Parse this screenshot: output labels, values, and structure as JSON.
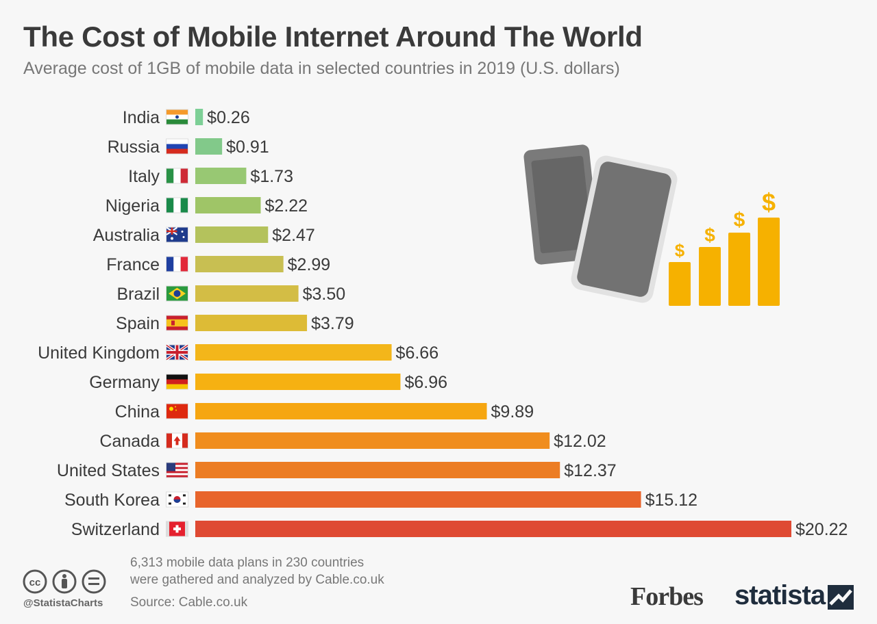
{
  "header": {
    "title": "The Cost of Mobile Internet Around The World",
    "subtitle": "Average cost of 1GB of mobile data in selected countries in 2019 (U.S. dollars)"
  },
  "chart_data": {
    "type": "bar",
    "orientation": "horizontal",
    "title": "The Cost of Mobile Internet Around The World",
    "subtitle": "Average cost of 1GB of mobile data in selected countries in 2019 (U.S. dollars)",
    "xlabel": "",
    "ylabel": "",
    "xlim": [
      0,
      20.22
    ],
    "grid": false,
    "categories": [
      "India",
      "Russia",
      "Italy",
      "Nigeria",
      "Australia",
      "France",
      "Brazil",
      "Spain",
      "United Kingdom",
      "Germany",
      "China",
      "Canada",
      "United States",
      "South Korea",
      "Switzerland"
    ],
    "values": [
      0.26,
      0.91,
      1.73,
      2.22,
      2.47,
      2.99,
      3.5,
      3.79,
      6.66,
      6.96,
      9.89,
      12.02,
      12.37,
      15.12,
      20.22
    ],
    "value_labels": [
      "$0.26",
      "$0.91",
      "$1.73",
      "$2.22",
      "$2.47",
      "$2.99",
      "$3.50",
      "$3.79",
      "$6.66",
      "$6.96",
      "$9.89",
      "$12.02",
      "$12.37",
      "$15.12",
      "$20.22"
    ],
    "bar_colors": [
      "#7dcf96",
      "#82c98a",
      "#98c873",
      "#9fc567",
      "#b4c25c",
      "#c8bf52",
      "#d3bd45",
      "#ddbb36",
      "#f3b61a",
      "#f6b112",
      "#f6a611",
      "#f08d1e",
      "#ec7d24",
      "#e8652c",
      "#df4a33"
    ]
  },
  "footer": {
    "note_line1": "6,313 mobile data plans in 230 countries",
    "note_line2": "were gathered and analyzed by Cable.co.uk",
    "source": "Source: Cable.co.uk",
    "handle": "@StatistaCharts",
    "brand1": "Forbes",
    "brand2": "statista"
  },
  "icons": [
    "creative-commons-icon",
    "attribution-icon",
    "no-derivatives-icon",
    "smartphone-icon",
    "dollar-growth-icon"
  ]
}
